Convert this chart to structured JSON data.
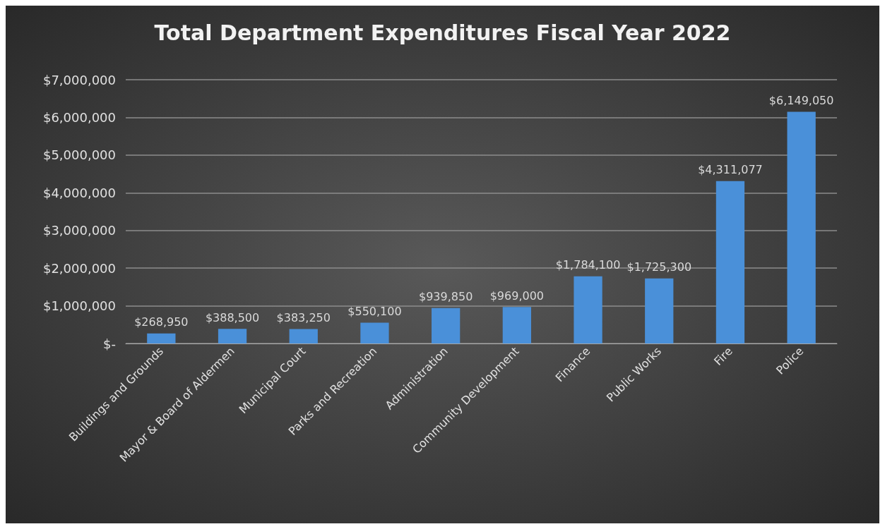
{
  "chart_data": {
    "type": "bar",
    "title": "Total Department Expenditures Fiscal Year 2022",
    "categories": [
      "Buildings and Grounds",
      "Mayor & Board of Aldermen",
      "Municipal Court",
      "Parks and Recreation",
      "Administration",
      "Community Development",
      "Finance",
      "Public Works",
      "Fire",
      "Police"
    ],
    "values": [
      268950,
      388500,
      383250,
      550100,
      939850,
      969000,
      1784100,
      1725300,
      4311077,
      6149050
    ],
    "value_labels": [
      "$268,950",
      "$388,500",
      "$383,250",
      "$550,100",
      "$939,850",
      "$969,000",
      "$1,784,100",
      "$1,725,300",
      "$4,311,077",
      "$6,149,050"
    ],
    "color": "#4a90d9",
    "ylim": [
      0,
      7000000
    ],
    "yticks": [
      {
        "value": 0,
        "label": "$-"
      },
      {
        "value": 1000000,
        "label": "$1,000,000"
      },
      {
        "value": 2000000,
        "label": "$2,000,000"
      },
      {
        "value": 3000000,
        "label": "$3,000,000"
      },
      {
        "value": 4000000,
        "label": "$4,000,000"
      },
      {
        "value": 5000000,
        "label": "$5,000,000"
      },
      {
        "value": 6000000,
        "label": "$6,000,000"
      },
      {
        "value": 7000000,
        "label": "$7,000,000"
      }
    ],
    "grid": true
  }
}
